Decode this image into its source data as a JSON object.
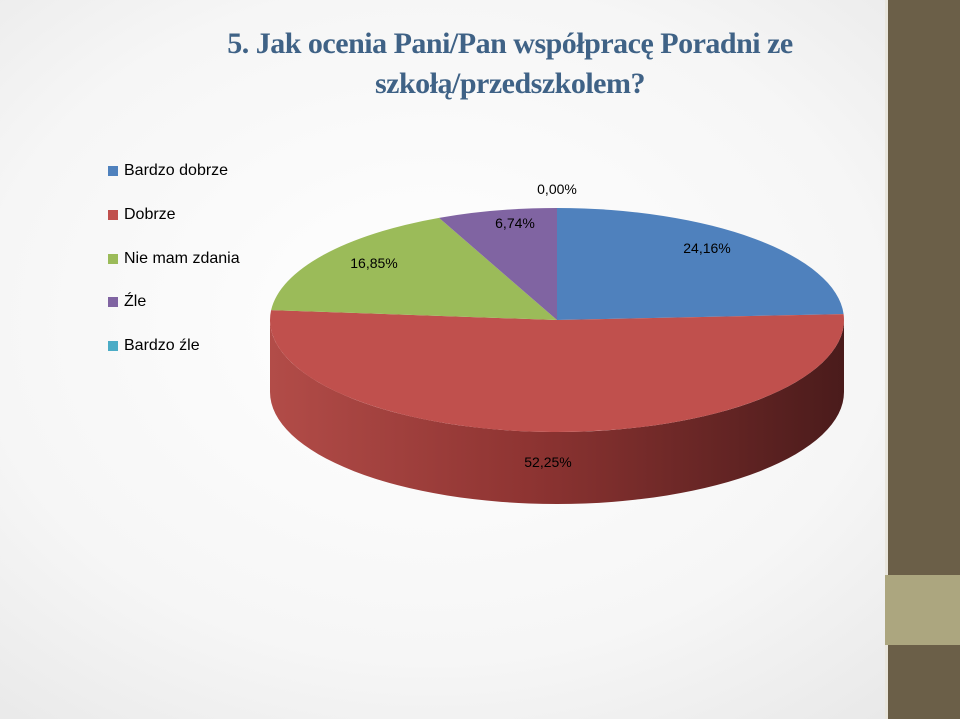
{
  "slide": {
    "title_line1": "5. Jak ocenia Pani/Pan współpracę Poradni ze",
    "title_line2": "szkołą/przedszkolem?"
  },
  "colors": {
    "sidebar": "#6b5f48",
    "sidebar_band": "#aca67f",
    "title": "#3f6286"
  },
  "chart_data": {
    "type": "pie",
    "three_d": true,
    "legend_position": "left",
    "title": "",
    "categories": [
      "Bardzo dobrze",
      "Dobrze",
      "Nie mam zdania",
      "Źle",
      "Bardzo źle"
    ],
    "values": [
      24.16,
      52.25,
      16.85,
      6.74,
      0.0
    ],
    "value_labels": [
      "24,16%",
      "52,25%",
      "16,85%",
      "6,74%",
      "0,00%"
    ],
    "colors": [
      "#4f81bd",
      "#c0504d",
      "#9bbb59",
      "#8064a2",
      "#4bacc6"
    ],
    "legend": [
      "Bardzo dobrze",
      "Dobrze",
      "Nie mam zdania",
      "Źle",
      "Bardzo źle"
    ]
  }
}
